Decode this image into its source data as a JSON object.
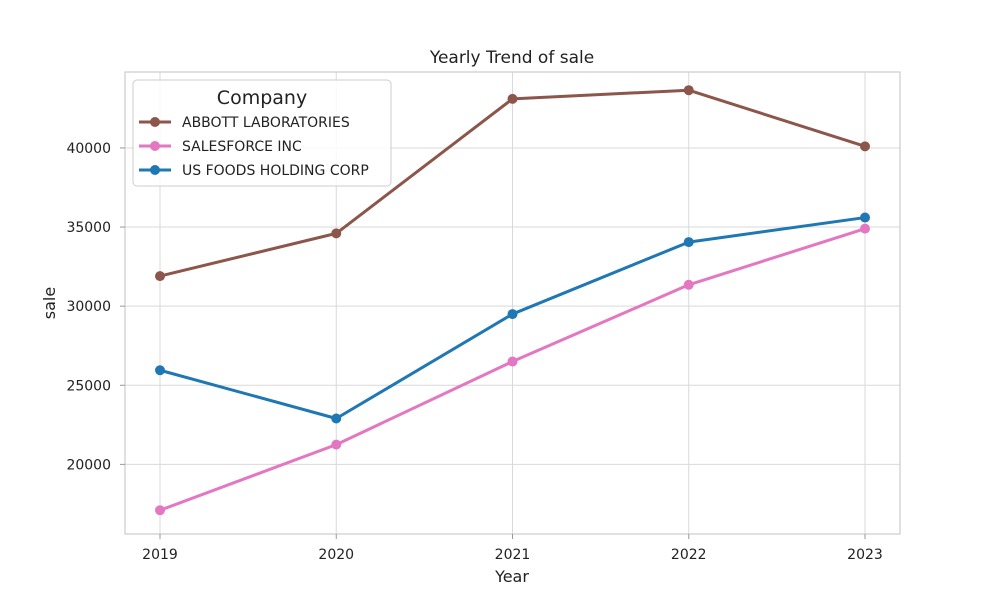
{
  "chart_data": {
    "type": "line",
    "title": "Yearly Trend of sale",
    "xlabel": "Year",
    "ylabel": "sale",
    "x": [
      2019,
      2020,
      2021,
      2022,
      2023
    ],
    "x_tick_labels": [
      "2019",
      "2020",
      "2021",
      "2022",
      "2023"
    ],
    "ylim": [
      15600,
      44800
    ],
    "y_ticks": [
      20000,
      25000,
      30000,
      35000,
      40000
    ],
    "y_tick_labels": [
      "20000",
      "25000",
      "30000",
      "35000",
      "40000"
    ],
    "grid": true,
    "legend": {
      "title": "Company",
      "position": "top-left"
    },
    "series": [
      {
        "name": "ABBOTT LABORATORIES",
        "color": "#8c564b",
        "values": [
          31900,
          34600,
          43100,
          43650,
          40100
        ]
      },
      {
        "name": "SALESFORCE INC",
        "color": "#e377c2",
        "values": [
          17100,
          21250,
          26500,
          31350,
          34900
        ]
      },
      {
        "name": "US FOODS HOLDING CORP",
        "color": "#1f77b4",
        "values": [
          25950,
          22900,
          29500,
          34050,
          35600
        ]
      }
    ]
  }
}
